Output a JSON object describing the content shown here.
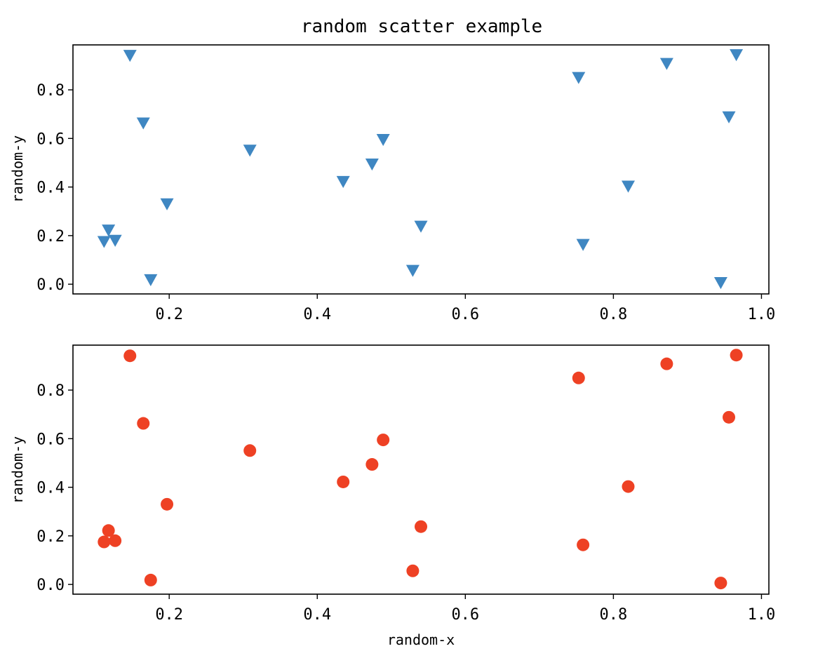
{
  "chart_data": [
    {
      "type": "scatter",
      "title": "random scatter example",
      "xlabel": "",
      "ylabel": "random-y",
      "marker": "triangle-down",
      "color": "#3f87c2",
      "xlim": [
        0.07,
        1.01
      ],
      "ylim": [
        -0.04,
        0.985
      ],
      "xticks": [
        0.2,
        0.4,
        0.6,
        0.8,
        1.0
      ],
      "xtick_labels": [
        "0.2",
        "0.4",
        "0.6",
        "0.8",
        "1.0"
      ],
      "yticks": [
        0.0,
        0.2,
        0.4,
        0.6,
        0.8
      ],
      "ytick_labels": [
        "0.0",
        "0.2",
        "0.4",
        "0.6",
        "0.8"
      ],
      "x": [
        0.147,
        0.165,
        0.309,
        0.489,
        0.474,
        0.435,
        0.197,
        0.118,
        0.112,
        0.127,
        0.175,
        0.54,
        0.529,
        0.753,
        0.872,
        0.966,
        0.956,
        0.82,
        0.759,
        0.945
      ],
      "y": [
        0.941,
        0.663,
        0.551,
        0.595,
        0.494,
        0.422,
        0.33,
        0.222,
        0.175,
        0.18,
        0.018,
        0.238,
        0.056,
        0.85,
        0.908,
        0.944,
        0.688,
        0.403,
        0.163,
        0.006
      ]
    },
    {
      "type": "scatter",
      "title": "",
      "xlabel": "random-x",
      "ylabel": "random-y",
      "marker": "circle",
      "color": "#ee4124",
      "xlim": [
        0.07,
        1.01
      ],
      "ylim": [
        -0.04,
        0.985
      ],
      "xticks": [
        0.2,
        0.4,
        0.6,
        0.8,
        1.0
      ],
      "xtick_labels": [
        "0.2",
        "0.4",
        "0.6",
        "0.8",
        "1.0"
      ],
      "yticks": [
        0.0,
        0.2,
        0.4,
        0.6,
        0.8
      ],
      "ytick_labels": [
        "0.0",
        "0.2",
        "0.4",
        "0.6",
        "0.8"
      ],
      "x": [
        0.147,
        0.165,
        0.309,
        0.489,
        0.474,
        0.435,
        0.197,
        0.118,
        0.112,
        0.127,
        0.175,
        0.54,
        0.529,
        0.753,
        0.872,
        0.966,
        0.956,
        0.82,
        0.759,
        0.945
      ],
      "y": [
        0.941,
        0.663,
        0.551,
        0.595,
        0.494,
        0.422,
        0.33,
        0.222,
        0.175,
        0.18,
        0.018,
        0.238,
        0.056,
        0.85,
        0.908,
        0.944,
        0.688,
        0.403,
        0.163,
        0.006
      ]
    }
  ]
}
